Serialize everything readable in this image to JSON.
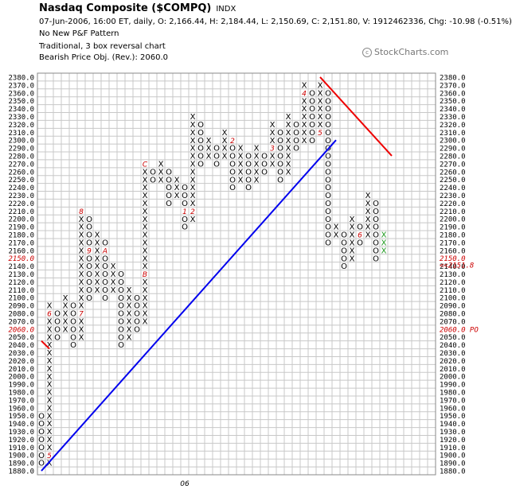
{
  "header": {
    "title": "Nasdaq Composite ($COMPQ)",
    "ticker": "INDX",
    "info": "07-Jun-2006, 16:00 ET, daily, O: 2,166.44, H: 2,184.44, L: 2,150.69, C: 2,151.80, V: 1912462336, Chg: -10.98 (-0.51%)",
    "line1": "No New P&F Pattern",
    "line2": "Traditional, 3 box reversal chart",
    "line3": "Bearish Price Obj. (Rev.): 2060.0"
  },
  "brand": "StockCharts.com",
  "chart_data": {
    "type": "point-and-figure",
    "box_size": 10,
    "reversal": 3,
    "ylim": [
      1880,
      2380
    ],
    "last_price_label": "2151.8",
    "last_price_marker": "<<2151.8",
    "price_objective_label": "2060.0 PO",
    "price_objective": 2060,
    "highlight_levels": [
      2150,
      2060
    ],
    "x_labels": [
      {
        "col": 18,
        "label": "06"
      }
    ],
    "columns": [
      {
        "t": "O",
        "lo": 1890,
        "hi": 1950,
        "marks": {}
      },
      {
        "t": "X",
        "lo": 1890,
        "hi": 2090,
        "marks": {
          "1900": "5",
          "2080": "6"
        }
      },
      {
        "t": "O",
        "lo": 2050,
        "hi": 2080,
        "marks": {}
      },
      {
        "t": "X",
        "lo": 2060,
        "hi": 2100,
        "marks": {}
      },
      {
        "t": "O",
        "lo": 2040,
        "hi": 2090,
        "marks": {}
      },
      {
        "t": "X",
        "lo": 2050,
        "hi": 2210,
        "marks": {
          "2080": "7",
          "2210": "8"
        }
      },
      {
        "t": "O",
        "lo": 2100,
        "hi": 2200,
        "marks": {
          "2160": "9"
        }
      },
      {
        "t": "X",
        "lo": 2110,
        "hi": 2180,
        "marks": {}
      },
      {
        "t": "O",
        "lo": 2100,
        "hi": 2170,
        "marks": {
          "2160": "A"
        }
      },
      {
        "t": "X",
        "lo": 2110,
        "hi": 2140,
        "marks": {}
      },
      {
        "t": "O",
        "lo": 2040,
        "hi": 2130,
        "marks": {}
      },
      {
        "t": "X",
        "lo": 2050,
        "hi": 2110,
        "marks": {}
      },
      {
        "t": "O",
        "lo": 2060,
        "hi": 2100,
        "marks": {}
      },
      {
        "t": "X",
        "lo": 2070,
        "hi": 2270,
        "marks": {
          "2130": "B",
          "2270": "C"
        }
      },
      {
        "t": "O",
        "lo": 2250,
        "hi": 2260,
        "marks": {}
      },
      {
        "t": "X",
        "lo": 2250,
        "hi": 2270,
        "marks": {}
      },
      {
        "t": "O",
        "lo": 2220,
        "hi": 2260,
        "marks": {}
      },
      {
        "t": "X",
        "lo": 2230,
        "hi": 2250,
        "marks": {}
      },
      {
        "t": "O",
        "lo": 2190,
        "hi": 2240,
        "marks": {
          "2210": "1"
        }
      },
      {
        "t": "X",
        "lo": 2200,
        "hi": 2330,
        "marks": {
          "2210": "2"
        }
      },
      {
        "t": "O",
        "lo": 2270,
        "hi": 2320,
        "marks": {}
      },
      {
        "t": "X",
        "lo": 2280,
        "hi": 2300,
        "marks": {}
      },
      {
        "t": "O",
        "lo": 2270,
        "hi": 2290,
        "marks": {}
      },
      {
        "t": "X",
        "lo": 2280,
        "hi": 2310,
        "marks": {}
      },
      {
        "t": "O",
        "lo": 2240,
        "hi": 2300,
        "marks": {
          "2300": "2"
        }
      },
      {
        "t": "X",
        "lo": 2250,
        "hi": 2290,
        "marks": {}
      },
      {
        "t": "O",
        "lo": 2240,
        "hi": 2280,
        "marks": {}
      },
      {
        "t": "X",
        "lo": 2250,
        "hi": 2290,
        "marks": {}
      },
      {
        "t": "O",
        "lo": 2260,
        "hi": 2280,
        "marks": {}
      },
      {
        "t": "X",
        "lo": 2270,
        "hi": 2320,
        "marks": {
          "2290": "3"
        }
      },
      {
        "t": "O",
        "lo": 2250,
        "hi": 2310,
        "marks": {}
      },
      {
        "t": "X",
        "lo": 2260,
        "hi": 2330,
        "marks": {}
      },
      {
        "t": "O",
        "lo": 2290,
        "hi": 2320,
        "marks": {}
      },
      {
        "t": "X",
        "lo": 2300,
        "hi": 2370,
        "marks": {
          "2360": "4"
        }
      },
      {
        "t": "O",
        "lo": 2300,
        "hi": 2360,
        "marks": {}
      },
      {
        "t": "X",
        "lo": 2310,
        "hi": 2370,
        "marks": {
          "2310": "5"
        }
      },
      {
        "t": "O",
        "lo": 2170,
        "hi": 2360,
        "marks": {}
      },
      {
        "t": "X",
        "lo": 2180,
        "hi": 2190,
        "marks": {}
      },
      {
        "t": "O",
        "lo": 2140,
        "hi": 2180,
        "marks": {}
      },
      {
        "t": "X",
        "lo": 2150,
        "hi": 2200,
        "marks": {}
      },
      {
        "t": "O",
        "lo": 2170,
        "hi": 2190,
        "marks": {
          "2180": "6"
        }
      },
      {
        "t": "X",
        "lo": 2180,
        "hi": 2230,
        "marks": {}
      },
      {
        "t": "O",
        "lo": 2150,
        "hi": 2220,
        "marks": {}
      },
      {
        "t": "X",
        "lo": 2160,
        "hi": 2180,
        "marks": {},
        "color": "#1f9a1f"
      }
    ],
    "trendlines": [
      {
        "name": "bullish support",
        "color": "#0000ee",
        "from": {
          "col": 0,
          "price": 1880
        },
        "to": {
          "col": 37,
          "price": 2300
        }
      },
      {
        "name": "bearish resistance",
        "color": "#ee0000",
        "from": {
          "col": 35,
          "price": 2380
        },
        "to": {
          "col": 44,
          "price": 2280
        }
      },
      {
        "name": "short bearish",
        "color": "#ee0000",
        "from": {
          "col": 0,
          "price": 2045
        },
        "to": {
          "col": 1,
          "price": 2035
        }
      }
    ]
  },
  "style": {
    "x_color": "#000000",
    "o_color": "#000000",
    "month_color": "#cc0000",
    "grid_color": "#c8c8c8",
    "highlight_color": "#cc0000"
  }
}
